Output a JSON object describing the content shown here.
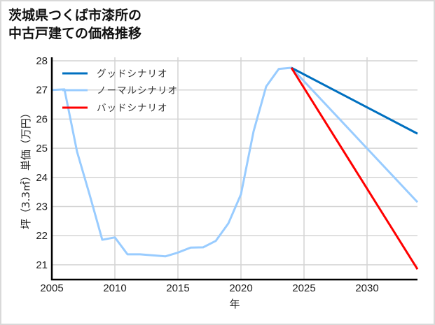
{
  "title_line1": "茨城県つくば市漆所の",
  "title_line2": "中古戸建ての価格推移",
  "chart_data": {
    "type": "line",
    "title": "茨城県つくば市漆所の中古戸建ての価格推移",
    "xlabel": "年",
    "ylabel": "坪（3.3㎡）単価（万円）",
    "xlim": [
      2005,
      2034
    ],
    "ylim": [
      20.5,
      28.1
    ],
    "xticks": [
      2005,
      2010,
      2015,
      2020,
      2025,
      2030
    ],
    "yticks": [
      21,
      22,
      23,
      24,
      25,
      26,
      27,
      28
    ],
    "grid": true,
    "legend_position": "upper left",
    "series": [
      {
        "name": "グッドシナリオ",
        "color": "#0070C0",
        "x": [
          2024,
          2034
        ],
        "values": [
          27.76,
          25.5
        ]
      },
      {
        "name": "ノーマルシナリオ",
        "color": "#99CCFF",
        "x": [
          2005,
          2006,
          2007,
          2008,
          2009,
          2010,
          2011,
          2012,
          2014,
          2015,
          2016,
          2017,
          2018,
          2019,
          2020,
          2021,
          2022,
          2023,
          2024,
          2034
        ],
        "values": [
          27.0,
          27.02,
          24.88,
          23.4,
          21.86,
          21.94,
          21.36,
          21.36,
          21.29,
          21.42,
          21.59,
          21.6,
          21.82,
          22.42,
          23.42,
          25.58,
          27.12,
          27.72,
          27.76,
          23.15
        ]
      },
      {
        "name": "バッドシナリオ",
        "color": "#FF0000",
        "x": [
          2024,
          2034
        ],
        "values": [
          27.76,
          20.85
        ]
      }
    ]
  }
}
